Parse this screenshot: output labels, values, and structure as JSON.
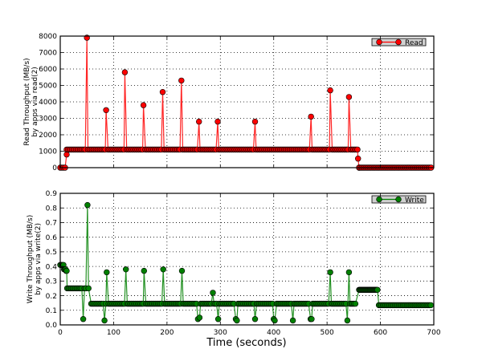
{
  "figure": {
    "xlabel": "Time (seconds)"
  },
  "chart_data": [
    {
      "type": "line",
      "title": "",
      "xlabel": "Time (seconds)",
      "ylabel": "Read Throughput (MB/s)\nby apps via read(2)",
      "ylabel_lines": [
        "Read Throughput (MB/s)",
        "by apps via read(2)"
      ],
      "xlim": [
        0,
        700
      ],
      "ylim": [
        0,
        8000
      ],
      "xticks": [
        0,
        100,
        200,
        300,
        400,
        500,
        600,
        700
      ],
      "xticklabels_visible": false,
      "yticks": [
        0,
        1000,
        2000,
        3000,
        4000,
        5000,
        6000,
        7000,
        8000
      ],
      "grid": true,
      "legend_position": "upper right",
      "series": [
        {
          "name": "Read",
          "color": "#ff0000",
          "marker": "circle",
          "baseline": {
            "start": 12,
            "end": 557,
            "step": 2.5,
            "value": 1100
          },
          "lead_points": [
            [
              0,
              0
            ],
            [
              3,
              0
            ],
            [
              6,
              0
            ],
            [
              9,
              0
            ],
            [
              12,
              800
            ]
          ],
          "spikes": [
            [
              50,
              7900
            ],
            [
              86,
              3500
            ],
            [
              121,
              5800
            ],
            [
              156,
              3800
            ],
            [
              192,
              4600
            ],
            [
              227,
              5300
            ],
            [
              260,
              2800
            ],
            [
              295,
              2800
            ],
            [
              365,
              2800
            ],
            [
              470,
              3100
            ],
            [
              506,
              4700
            ],
            [
              541,
              4300
            ]
          ],
          "tail_points": [
            [
              558,
              550
            ],
            [
              560,
              0
            ]
          ],
          "tail_flat": {
            "start": 560,
            "end": 695,
            "step": 2.5,
            "value": 0
          }
        }
      ]
    },
    {
      "type": "line",
      "title": "",
      "xlabel": "Time (seconds)",
      "ylabel": "Write Throughput (MB/s)\nby apps via write(2)",
      "ylabel_lines": [
        "Write Throughput (MB/s)",
        "by apps via write(2)"
      ],
      "xlim": [
        0,
        700
      ],
      "ylim": [
        0,
        0.9
      ],
      "xticks": [
        0,
        100,
        200,
        300,
        400,
        500,
        600,
        700
      ],
      "yticks": [
        0.0,
        0.1,
        0.2,
        0.3,
        0.4,
        0.5,
        0.6,
        0.7,
        0.8,
        0.9
      ],
      "ytick_labels": [
        "0.0",
        "0.1",
        "0.2",
        "0.3",
        "0.4",
        "0.5",
        "0.6",
        "0.7",
        "0.8",
        "0.9"
      ],
      "grid": true,
      "legend_position": "upper right",
      "series": [
        {
          "name": "Write",
          "color": "#008000",
          "marker": "circle",
          "segments": [
            {
              "start": 0,
              "end": 6,
              "step": 2,
              "value": 0.41
            },
            {
              "start": 7,
              "end": 10,
              "step": 1.5,
              "value": 0.38
            },
            {
              "start": 11,
              "end": 12,
              "step": 1,
              "value": 0.37
            },
            {
              "start": 13,
              "end": 55,
              "step": 2.5,
              "value": 0.25
            },
            {
              "start": 58,
              "end": 555,
              "step": 2.5,
              "value": 0.145
            },
            {
              "start": 560,
              "end": 595,
              "step": 1.5,
              "value": 0.24
            },
            {
              "start": 597,
              "end": 695,
              "step": 2.5,
              "value": 0.135
            }
          ],
          "spikes": [
            [
              51,
              0.82
            ],
            [
              87,
              0.36
            ],
            [
              123,
              0.38
            ],
            [
              157,
              0.37
            ],
            [
              193,
              0.38
            ],
            [
              228,
              0.37
            ],
            [
              286,
              0.22
            ],
            [
              506,
              0.36
            ],
            [
              541,
              0.36
            ]
          ],
          "dips": [
            [
              43,
              0.04
            ],
            [
              83,
              0.03
            ],
            [
              258,
              0.04
            ],
            [
              261,
              0.05
            ],
            [
              296,
              0.04
            ],
            [
              329,
              0.04
            ],
            [
              331,
              0.03
            ],
            [
              365,
              0.04
            ],
            [
              400,
              0.04
            ],
            [
              402,
              0.03
            ],
            [
              436,
              0.03
            ],
            [
              469,
              0.04
            ],
            [
              471,
              0.04
            ],
            [
              538,
              0.03
            ]
          ]
        }
      ]
    }
  ]
}
